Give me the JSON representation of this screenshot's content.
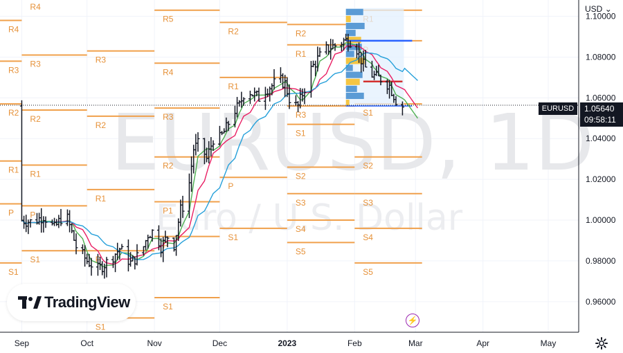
{
  "chart_data": {
    "type": "candlestick",
    "symbol": "EURUSD",
    "interval": "1D",
    "watermark_title": "EURUSD, 1D",
    "watermark_subtitle": "Euro / U.S. Dollar",
    "currency_label": "USD",
    "ylim": [
      0.945,
      1.108
    ],
    "y_ticks": [
      "1.10000",
      "1.08000",
      "1.06000",
      "1.04000",
      "1.02000",
      "1.00000",
      "0.98000",
      "0.96000"
    ],
    "x_tick_labels": [
      {
        "label": "Sep",
        "pos": 0.0
      },
      {
        "label": "Oct",
        "pos": 30.0
      },
      {
        "label": "Nov",
        "pos": 61.0
      },
      {
        "label": "Dec",
        "pos": 91.0
      },
      {
        "label": "2023",
        "pos": 122.0
      },
      {
        "label": "Feb",
        "pos": 153.0
      },
      {
        "label": "Mar",
        "pos": 181.0
      },
      {
        "label": "Apr",
        "pos": 212.0
      },
      {
        "label": "May",
        "pos": 242.0
      }
    ],
    "x_range": [
      -10,
      256
    ],
    "last_price": "1.05640",
    "countdown": "09:58:11",
    "close_anchors": [
      [
        0,
        1.0
      ],
      [
        5,
        0.999
      ],
      [
        10,
        1.002
      ],
      [
        15,
        0.996
      ],
      [
        20,
        1.004
      ],
      [
        25,
        0.987
      ],
      [
        30,
        0.98
      ],
      [
        35,
        0.976
      ],
      [
        40,
        0.98
      ],
      [
        45,
        0.986
      ],
      [
        50,
        0.979
      ],
      [
        55,
        0.984
      ],
      [
        58,
        0.993
      ],
      [
        61,
        0.995
      ],
      [
        64,
        0.987
      ],
      [
        67,
        0.992
      ],
      [
        70,
        0.988
      ],
      [
        73,
        1.005
      ],
      [
        76,
        1.01
      ],
      [
        79,
        1.035
      ],
      [
        82,
        1.038
      ],
      [
        85,
        1.03
      ],
      [
        88,
        1.04
      ],
      [
        91,
        1.04
      ],
      [
        94,
        1.045
      ],
      [
        97,
        1.053
      ],
      [
        100,
        1.056
      ],
      [
        103,
        1.065
      ],
      [
        106,
        1.062
      ],
      [
        109,
        1.06
      ],
      [
        112,
        1.064
      ],
      [
        115,
        1.066
      ],
      [
        118,
        1.069
      ],
      [
        121,
        1.067
      ],
      [
        124,
        1.056
      ],
      [
        127,
        1.056
      ],
      [
        130,
        1.065
      ],
      [
        133,
        1.074
      ],
      [
        136,
        1.079
      ],
      [
        139,
        1.083
      ],
      [
        142,
        1.085
      ],
      [
        145,
        1.086
      ],
      [
        148,
        1.088
      ],
      [
        151,
        1.088
      ],
      [
        154,
        1.084
      ],
      [
        157,
        1.076
      ],
      [
        160,
        1.072
      ],
      [
        163,
        1.07
      ],
      [
        166,
        1.069
      ],
      [
        169,
        1.066
      ],
      [
        172,
        1.059
      ],
      [
        175,
        1.056
      ]
    ],
    "series": [
      {
        "name": "MA fast",
        "color": "#4caf50",
        "period": 5
      },
      {
        "name": "MA mid",
        "color": "#e91e63",
        "period": 10
      },
      {
        "name": "MA slow",
        "color": "#26a0da",
        "period": 20
      }
    ],
    "pivot_blocks": [
      {
        "t0": -10,
        "t1": 0,
        "levels": [
          {
            "label": "R4",
            "price": 1.098
          },
          {
            "label": "R3",
            "price": 1.078
          },
          {
            "label": "R2",
            "price": 1.057
          },
          {
            "label": "R1",
            "price": 1.029
          },
          {
            "label": "P",
            "price": 1.008
          },
          {
            "label": "S1",
            "price": 0.979
          }
        ]
      },
      {
        "t0": 0,
        "t1": 30,
        "levels": [
          {
            "label": "R4",
            "price": 1.109
          },
          {
            "label": "R3",
            "price": 1.081
          },
          {
            "label": "R2",
            "price": 1.054
          },
          {
            "label": "R1",
            "price": 1.027
          },
          {
            "label": "P",
            "price": 1.007
          },
          {
            "label": "S1",
            "price": 0.985
          }
        ]
      },
      {
        "t0": 30,
        "t1": 61,
        "levels": [
          {
            "label": "R3",
            "price": 1.083
          },
          {
            "label": "R2",
            "price": 1.051
          },
          {
            "label": "R1",
            "price": 1.015
          },
          {
            "label": "P",
            "price": 0.985
          },
          {
            "label": "S1",
            "price": 0.952
          }
        ]
      },
      {
        "t0": 61,
        "t1": 91,
        "levels": [
          {
            "label": "R5",
            "price": 1.103
          },
          {
            "label": "R4",
            "price": 1.077
          },
          {
            "label": "R3",
            "price": 1.055
          },
          {
            "label": "R2",
            "price": 1.031
          },
          {
            "label": "P1",
            "price": 1.009
          },
          {
            "label": "P",
            "price": 0.992
          },
          {
            "label": "S1",
            "price": 0.962
          }
        ]
      },
      {
        "t0": 91,
        "t1": 122,
        "levels": [
          {
            "label": "R2",
            "price": 1.097
          },
          {
            "label": "R1",
            "price": 1.07
          },
          {
            "label": "P",
            "price": 1.021
          },
          {
            "label": "S1",
            "price": 0.996
          }
        ]
      },
      {
        "t0": 122,
        "t1": 153,
        "levels": [
          {
            "label": "R2",
            "price": 1.096
          },
          {
            "label": "R1",
            "price": 1.086
          },
          {
            "label": "R3",
            "price": 1.056
          },
          {
            "label": "S1",
            "price": 1.047
          },
          {
            "label": "S2",
            "price": 1.026
          },
          {
            "label": "S3",
            "price": 1.013
          },
          {
            "label": "S4",
            "price": 1.0
          },
          {
            "label": "S5",
            "price": 0.989
          }
        ]
      },
      {
        "t0": 153,
        "t1": 184,
        "levels": [
          {
            "label": "R1",
            "price": 1.103
          },
          {
            "label": "P",
            "price": 1.088
          },
          {
            "label": "S1",
            "price": 1.057
          },
          {
            "label": "S2",
            "price": 1.031
          },
          {
            "label": "S3",
            "price": 1.013
          },
          {
            "label": "S4",
            "price": 0.996
          },
          {
            "label": "S5",
            "price": 0.979
          }
        ]
      }
    ],
    "volume_profile": {
      "t0": 149,
      "t1": 182,
      "price_low": 1.056,
      "price_high": 1.104,
      "poc_upper": 1.088,
      "poc_lower": 1.068
    }
  },
  "branding": {
    "name": "TradingView"
  }
}
